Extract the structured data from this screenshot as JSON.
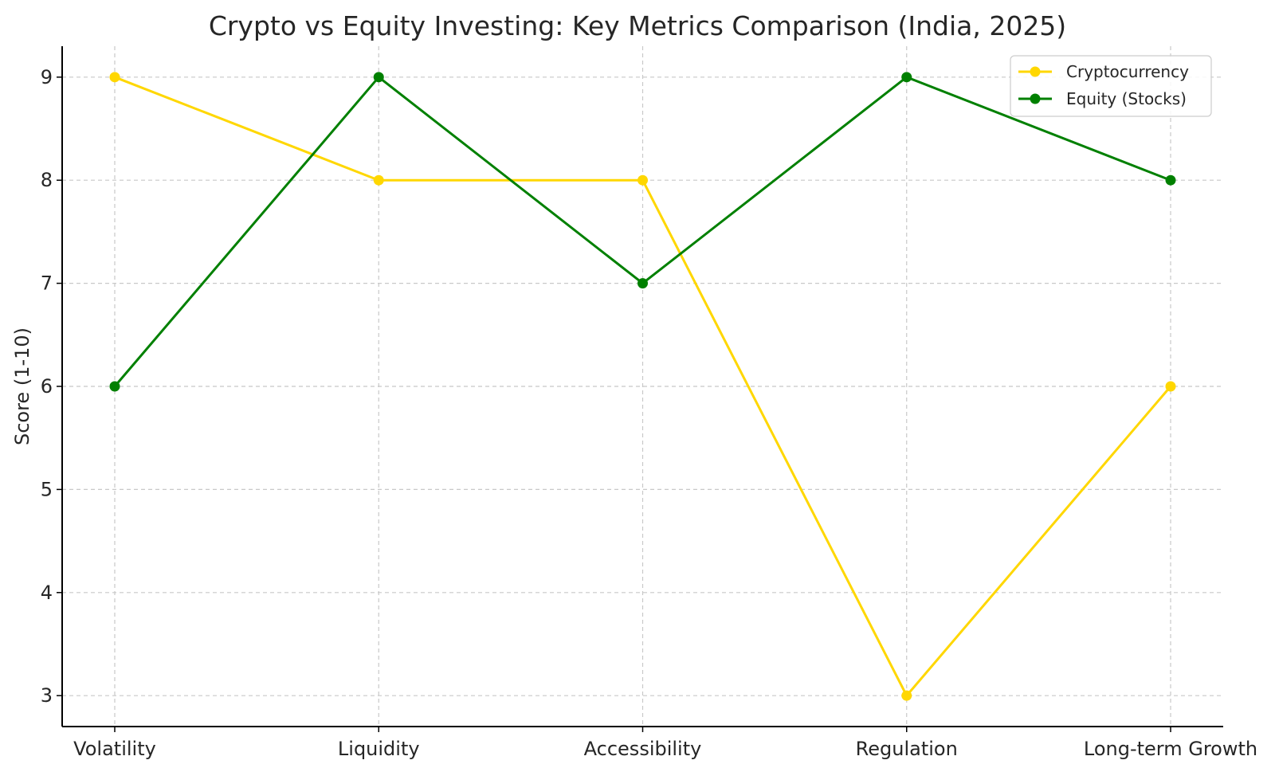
{
  "chart_data": {
    "type": "line",
    "title": "Crypto vs Equity Investing: Key Metrics Comparison (India, 2025)",
    "xlabel": "",
    "ylabel": "Score (1-10)",
    "categories": [
      "Volatility",
      "Liquidity",
      "Accessibility",
      "Regulation",
      "Long-term Growth"
    ],
    "ylim": [
      2.7,
      9.3
    ],
    "yticks": [
      "3",
      "4",
      "5",
      "6",
      "7",
      "8",
      "9"
    ],
    "grid": true,
    "legend_position": "top-right",
    "series": [
      {
        "name": "Cryptocurrency",
        "color": "#FFD700",
        "marker": "circle",
        "values": [
          9,
          8,
          8,
          3,
          6
        ]
      },
      {
        "name": "Equity (Stocks)",
        "color": "#008000",
        "marker": "circle",
        "values": [
          6,
          9,
          7,
          9,
          8
        ]
      }
    ]
  }
}
